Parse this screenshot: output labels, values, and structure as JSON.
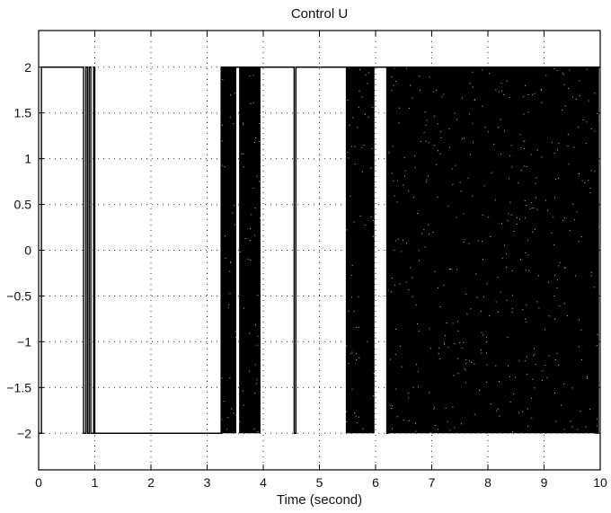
{
  "chart_data": {
    "type": "line",
    "title": "Control U",
    "xlabel": "Time (second)",
    "ylabel": "",
    "xlim": [
      0,
      10
    ],
    "ylim": [
      -2.4,
      2.4
    ],
    "grid": true,
    "x_ticks": [
      0,
      1,
      2,
      3,
      4,
      5,
      6,
      7,
      8,
      9,
      10
    ],
    "y_ticks": [
      2,
      1.5,
      1,
      0.5,
      0,
      -0.5,
      -1,
      -1.5,
      -2
    ],
    "x_tick_labels": [
      "0",
      "1",
      "2",
      "3",
      "4",
      "5",
      "6",
      "7",
      "8",
      "9",
      "10"
    ],
    "y_tick_labels": [
      "2",
      "1.5",
      "1",
      "0.5",
      "0",
      "−0.5",
      "−1",
      "−1.5",
      "−2"
    ],
    "series": [
      {
        "color": "#000000",
        "values_shown": "bang-bang control switching between +2 and -2",
        "steps": [
          {
            "t": 0.0,
            "u": -2
          },
          {
            "t": 0.05,
            "u": 2
          },
          {
            "t": 0.8,
            "u": -2
          },
          {
            "t": 0.84,
            "u": 2
          },
          {
            "t": 0.87,
            "u": -2
          },
          {
            "t": 0.9,
            "u": 2
          },
          {
            "t": 0.93,
            "u": -2
          },
          {
            "t": 0.98,
            "u": 2
          },
          {
            "t": 1.0,
            "u": -2
          },
          {
            "t": 3.25,
            "u": 2
          },
          {
            "t": 4.55,
            "u": -2
          },
          {
            "t": 4.58,
            "u": 2
          },
          {
            "t": 6.2,
            "u": -2
          },
          {
            "t": 6.22,
            "u": 2
          },
          {
            "t": 10.0,
            "u": 2
          }
        ],
        "chattering_intervals": [
          [
            3.25,
            3.52
          ],
          [
            3.57,
            3.95
          ],
          [
            5.47,
            5.98
          ],
          [
            6.22,
            9.98
          ]
        ],
        "chattering_amplitude": [
          -2,
          2
        ]
      }
    ]
  }
}
